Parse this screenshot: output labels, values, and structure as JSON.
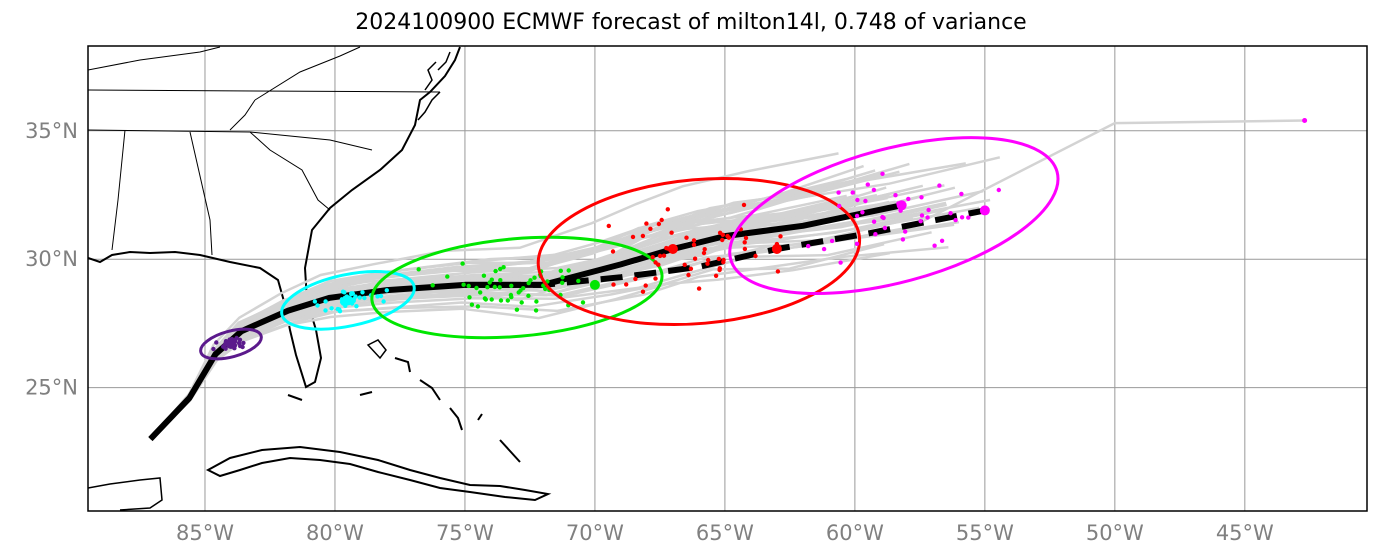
{
  "title": "2024100900 ECMWF forecast of milton14l, 0.748 of variance",
  "x_ticks": [
    "85°W",
    "80°W",
    "75°W",
    "70°W",
    "65°W",
    "60°W",
    "55°W",
    "50°W",
    "45°W"
  ],
  "y_ticks": [
    "35°N",
    "30°N",
    "25°N"
  ],
  "chart_data": {
    "type": "map",
    "title": "2024100900 ECMWF forecast of milton14l, 0.748 of variance",
    "x_ticks_lon": [
      -85,
      -80,
      -75,
      -70,
      -65,
      -60,
      -55,
      -50,
      -45
    ],
    "y_ticks_lat": [
      35,
      30,
      25
    ],
    "lon_range": [
      -89.5,
      -40.3
    ],
    "lat_range": [
      20.2,
      38.3
    ],
    "grid": true,
    "colors": {
      "ensemble": "#d3d3d3",
      "main_track": "#000000",
      "t1": "#5b1a8c",
      "t2": "#00ffff",
      "t3": "#00e600",
      "t4": "#ff0000",
      "t5": "#ff00ff"
    },
    "main_track": [
      [
        -87.1,
        23.0
      ],
      [
        -85.6,
        24.6
      ],
      [
        -84.6,
        26.3
      ],
      [
        -83.6,
        27.2
      ],
      [
        -81.8,
        28.0
      ],
      [
        -80.2,
        28.5
      ],
      [
        -78.0,
        28.8
      ],
      [
        -75.0,
        29.0
      ],
      [
        -72.0,
        29.0
      ],
      [
        -69.0,
        29.8
      ],
      [
        -67.0,
        30.4
      ],
      [
        -65.0,
        30.9
      ],
      [
        -62.0,
        31.3
      ],
      [
        -58.2,
        32.1
      ]
    ],
    "dashed_track": [
      [
        -75.0,
        29.0
      ],
      [
        -72.0,
        29.0
      ],
      [
        -69.0,
        29.3
      ],
      [
        -66.0,
        29.7
      ],
      [
        -63.0,
        30.4
      ],
      [
        -59.5,
        31.0
      ],
      [
        -55.0,
        31.9
      ]
    ],
    "clusters": [
      {
        "key": "t1",
        "center": [
          -84.0,
          26.7
        ],
        "rx": [
          1.2,
          0.5
        ],
        "rot": -15,
        "count": 25,
        "spread": [
          0.8,
          0.4
        ]
      },
      {
        "key": "t2",
        "center": [
          -79.5,
          28.4
        ],
        "rx": [
          2.6,
          1.0
        ],
        "rot": -12,
        "count": 40,
        "spread": [
          1.8,
          0.6
        ]
      },
      {
        "key": "t3",
        "center": [
          -73.0,
          28.9
        ],
        "rx": [
          5.6,
          1.9
        ],
        "rot": -5,
        "count": 55,
        "spread": [
          4.5,
          1.4
        ]
      },
      {
        "key": "t4",
        "center": [
          -66.0,
          30.3
        ],
        "rx": [
          6.2,
          2.8
        ],
        "rot": -5,
        "count": 55,
        "spread": [
          5.0,
          2.3
        ]
      },
      {
        "key": "t5",
        "center": [
          -58.5,
          31.7
        ],
        "rx": [
          6.5,
          2.6
        ],
        "rot": -15,
        "count": 40,
        "spread": [
          5.0,
          2.1
        ]
      }
    ],
    "cluster_markers": [
      {
        "key": "t1",
        "lonlat": [
          -84.0,
          26.7
        ]
      },
      {
        "key": "t2",
        "lonlat": [
          -79.5,
          28.4
        ]
      },
      {
        "key": "t3",
        "lonlat": [
          -70.0,
          29.0
        ]
      },
      {
        "key": "t4",
        "lonlat": [
          -67.0,
          30.4
        ]
      },
      {
        "key": "t4",
        "lonlat": [
          -63.0,
          30.4
        ]
      },
      {
        "key": "t5",
        "lonlat": [
          -58.2,
          32.1
        ]
      },
      {
        "key": "t5",
        "lonlat": [
          -55.0,
          31.9
        ]
      }
    ]
  }
}
